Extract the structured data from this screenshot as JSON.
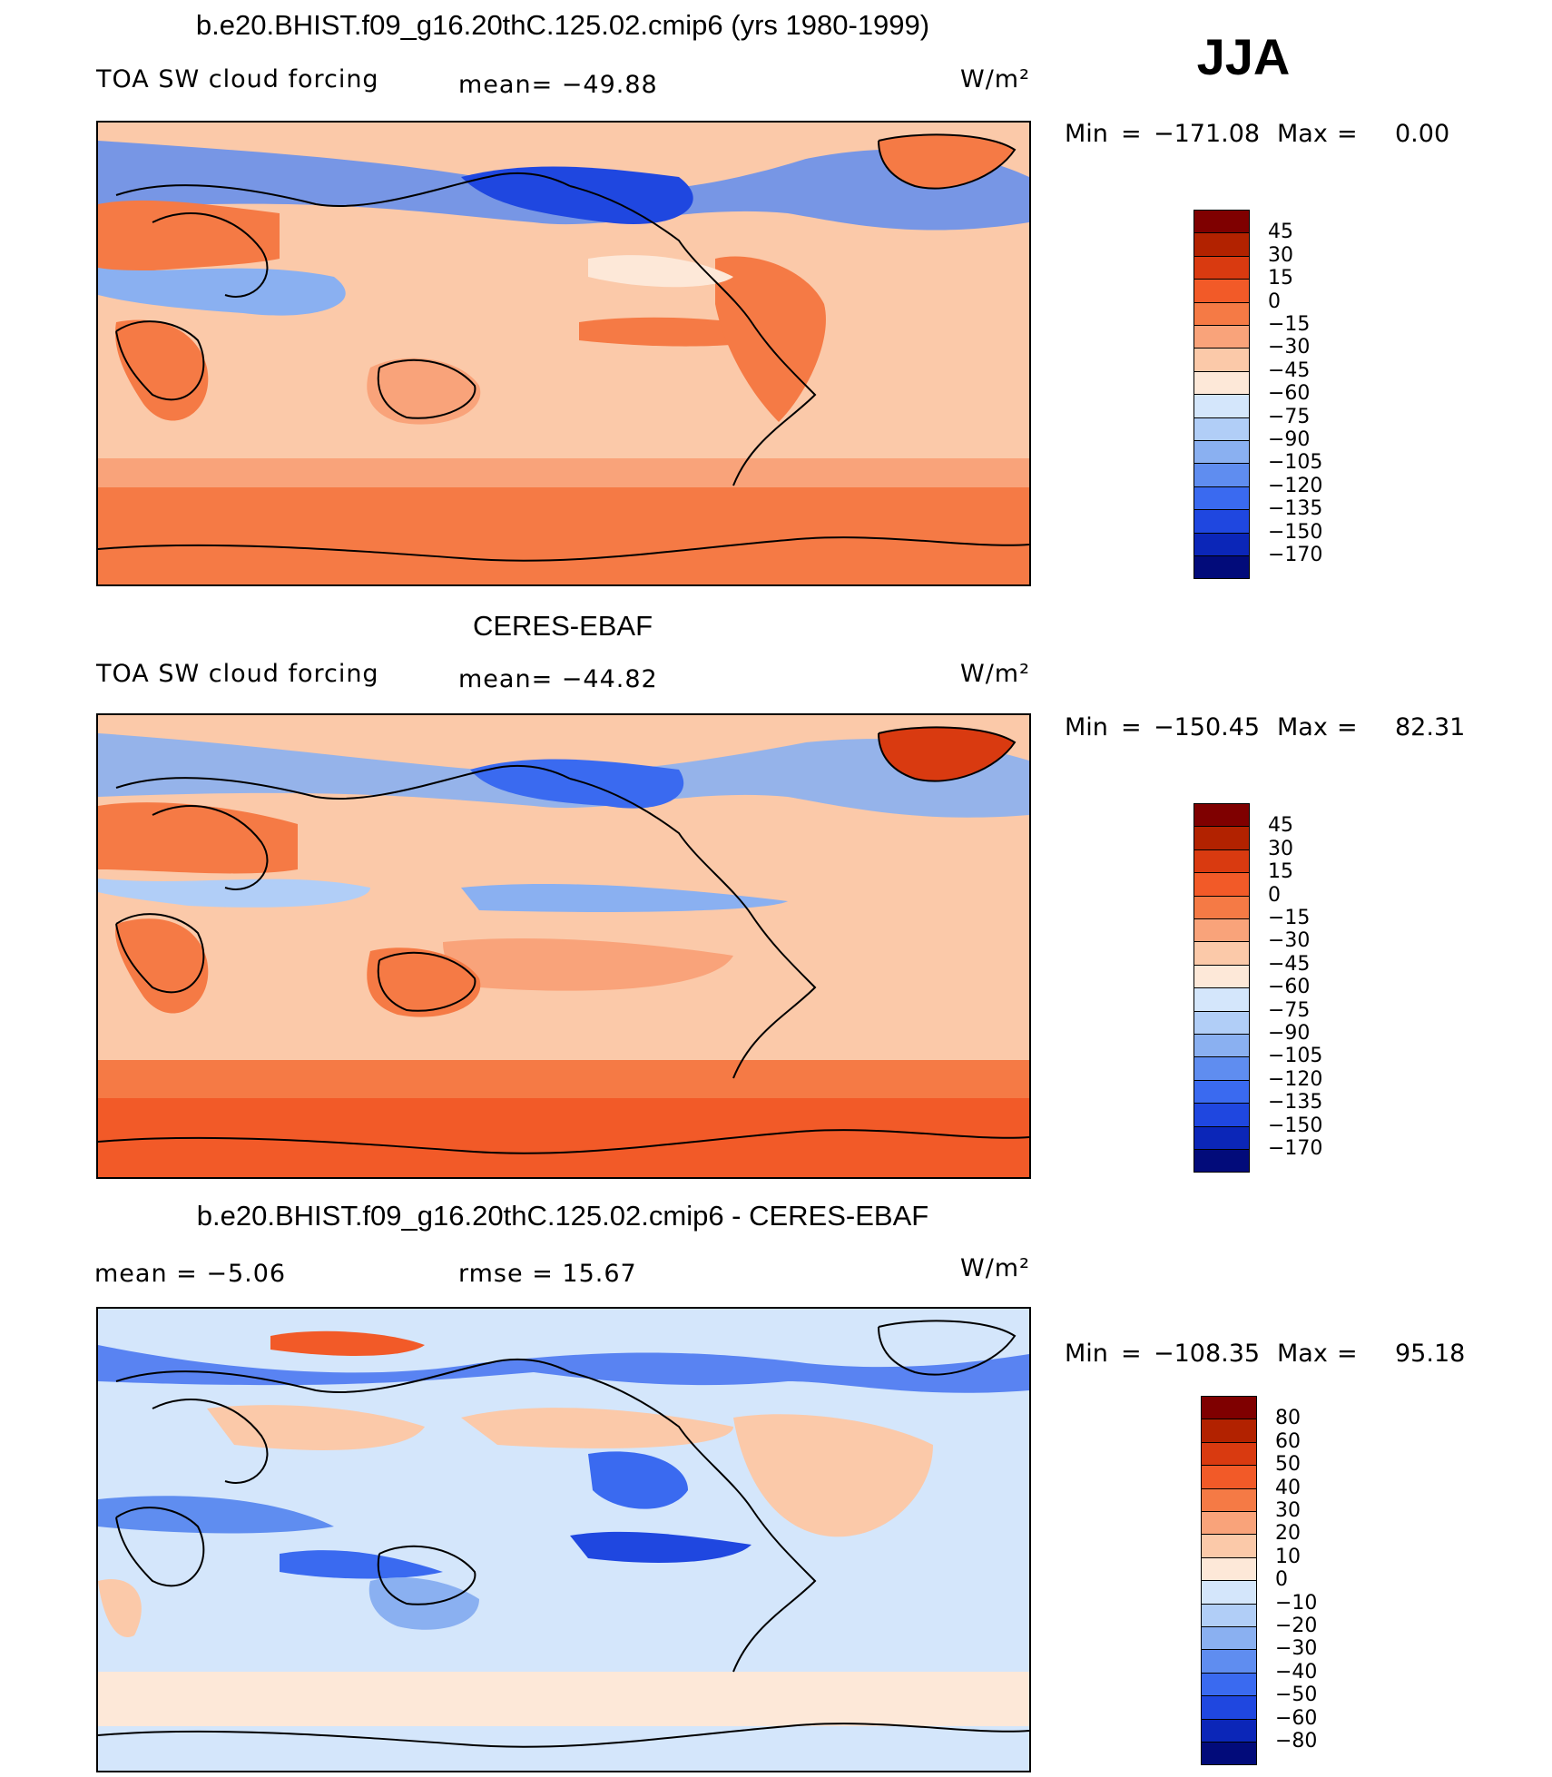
{
  "season": "JJA",
  "panels": [
    {
      "title": "b.e20.BHIST.f09_g16.20thC.125.02.cmip6 (yrs 1980-1999)",
      "left_text": "TOA SW cloud forcing",
      "mid_text": "mean= −49.88",
      "units": "W/m²",
      "min_label": "Min",
      "min_value": "−171.08",
      "max_label": "Max",
      "max_value": "0.00",
      "colorbar_ticks": [
        "45",
        "30",
        "15",
        "0",
        "−15",
        "−30",
        "−45",
        "−60",
        "−75",
        "−90",
        "−105",
        "−120",
        "−135",
        "−150",
        "−170"
      ]
    },
    {
      "title": "CERES-EBAF",
      "left_text": "TOA SW cloud forcing",
      "mid_text": "mean= −44.82",
      "units": "W/m²",
      "min_label": "Min",
      "min_value": "−150.45",
      "max_label": "Max",
      "max_value": "82.31",
      "colorbar_ticks": [
        "45",
        "30",
        "15",
        "0",
        "−15",
        "−30",
        "−45",
        "−60",
        "−75",
        "−90",
        "−105",
        "−120",
        "−135",
        "−150",
        "−170"
      ]
    },
    {
      "title": "b.e20.BHIST.f09_g16.20thC.125.02.cmip6 - CERES-EBAF",
      "left_text": "mean =   −5.06",
      "mid_text": "rmse =   15.67",
      "units": "W/m²",
      "min_label": "Min",
      "min_value": "−108.35",
      "max_label": "Max",
      "max_value": "95.18",
      "colorbar_ticks": [
        "80",
        "60",
        "50",
        "40",
        "30",
        "20",
        "10",
        "0",
        "−10",
        "−20",
        "−30",
        "−40",
        "−50",
        "−60",
        "−80"
      ]
    }
  ],
  "colors": {
    "abs_scale": [
      "#7f0000",
      "#b22200",
      "#d93a10",
      "#f25a28",
      "#f57a45",
      "#f9a37a",
      "#fbc9a9",
      "#fde8d8",
      "#d4e6fb",
      "#b1cef7",
      "#8ab0f1",
      "#5f8df0",
      "#3a6af0",
      "#1f47e0",
      "#0b26b8",
      "#020b7a"
    ],
    "diff_scale": [
      "#7f0000",
      "#b22200",
      "#d93a10",
      "#f25a28",
      "#f57a45",
      "#f9a37a",
      "#fbc9a9",
      "#fde8d8",
      "#d4e6fb",
      "#b1cef7",
      "#8ab0f1",
      "#5f8df0",
      "#3a6af0",
      "#1f47e0",
      "#0b26b8",
      "#020b7a"
    ]
  }
}
